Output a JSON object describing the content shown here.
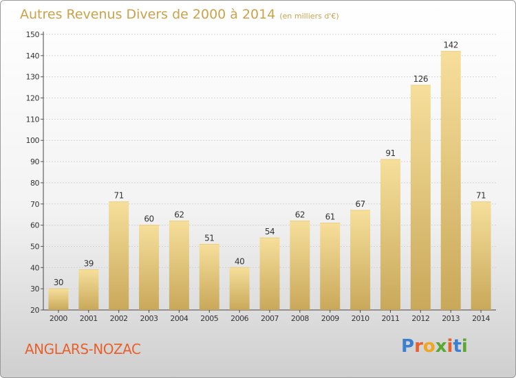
{
  "chart_data": {
    "type": "bar",
    "title": "Autres Revenus Divers de 2000 à 2014",
    "subtitle": "(en milliers d'€)",
    "categories": [
      "2000",
      "2001",
      "2002",
      "2003",
      "2004",
      "2005",
      "2006",
      "2007",
      "2008",
      "2009",
      "2010",
      "2011",
      "2012",
      "2013",
      "2014"
    ],
    "values": [
      30,
      39,
      71,
      60,
      62,
      51,
      40,
      54,
      62,
      61,
      67,
      91,
      126,
      142,
      71
    ],
    "ylim": [
      20,
      150
    ],
    "yticks": [
      20,
      30,
      40,
      50,
      60,
      70,
      80,
      90,
      100,
      110,
      120,
      130,
      140,
      150
    ],
    "grid": true,
    "colors": {
      "bar_light": "#f6df9b",
      "bar_dark": "#c9a85a",
      "title": "#c9a24a"
    }
  },
  "place_name": "ANGLARS-NOZAC",
  "logo": {
    "text": "Proxiti",
    "colors": [
      "#3a7fd0",
      "#e8602c",
      "#f2a51f",
      "#5aa832",
      "#e8602c",
      "#3a7fd0",
      "#5aa832"
    ]
  }
}
